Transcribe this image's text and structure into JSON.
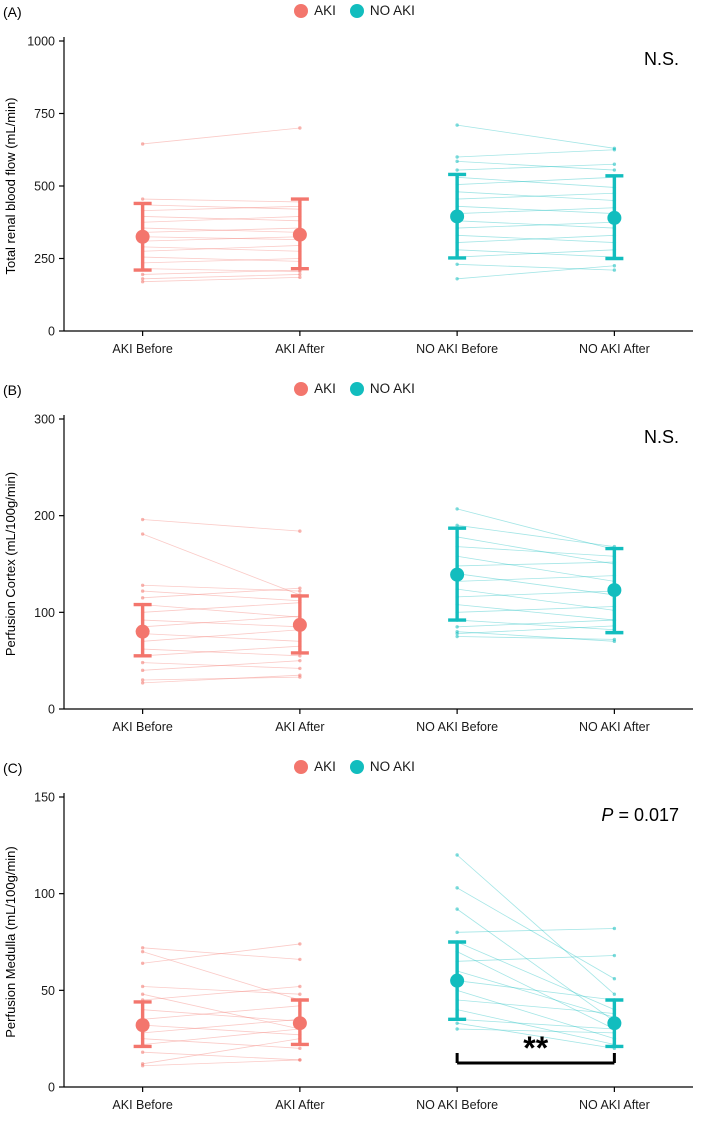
{
  "legend": {
    "aki_label": "AKI",
    "no_aki_label": "NO AKI"
  },
  "colors": {
    "aki": "#F3766D",
    "no_aki": "#12BDBE",
    "axis": "#000000",
    "text": "#1a1a1a"
  },
  "chart_data": [
    {
      "type": "scatter",
      "panel_label": "(A)",
      "annotation": "N.S.",
      "annotation_italic_prefix": "",
      "ylabel": "Total renal blood flow (mL/min)",
      "ylim": [
        0,
        1000
      ],
      "yticks": [
        0,
        250,
        500,
        750,
        1000
      ],
      "categories": [
        "AKI Before",
        "AKI After",
        "NO AKI Before",
        "NO AKI After"
      ],
      "series": [
        {
          "name": "AKI",
          "cat_indices": [
            0,
            1
          ],
          "mean": [
            325,
            332
          ],
          "ci": [
            [
              210,
              440
            ],
            [
              215,
              455
            ]
          ],
          "pairs": [
            [
              645,
              700
            ],
            [
              455,
              445
            ],
            [
              435,
              420
            ],
            [
              415,
              430
            ],
            [
              395,
              380
            ],
            [
              375,
              395
            ],
            [
              355,
              340
            ],
            [
              340,
              355
            ],
            [
              325,
              315
            ],
            [
              310,
              325
            ],
            [
              290,
              275
            ],
            [
              275,
              295
            ],
            [
              255,
              240
            ],
            [
              235,
              250
            ],
            [
              215,
              205
            ],
            [
              195,
              210
            ],
            [
              180,
              195
            ],
            [
              170,
              185
            ]
          ]
        },
        {
          "name": "NO AKI",
          "cat_indices": [
            2,
            3
          ],
          "mean": [
            395,
            390
          ],
          "ci": [
            [
              252,
              540
            ],
            [
              250,
              535
            ]
          ],
          "pairs": [
            [
              710,
              630
            ],
            [
              600,
              625
            ],
            [
              585,
              555
            ],
            [
              555,
              575
            ],
            [
              530,
              495
            ],
            [
              505,
              530
            ],
            [
              480,
              450
            ],
            [
              455,
              475
            ],
            [
              430,
              405
            ],
            [
              405,
              425
            ],
            [
              380,
              355
            ],
            [
              355,
              375
            ],
            [
              330,
              305
            ],
            [
              305,
              330
            ],
            [
              280,
              255
            ],
            [
              255,
              280
            ],
            [
              230,
              210
            ],
            [
              180,
              225
            ]
          ]
        }
      ],
      "significance": null
    },
    {
      "type": "scatter",
      "panel_label": "(B)",
      "annotation": "N.S.",
      "annotation_italic_prefix": "",
      "ylabel": "Perfusion Cortex (mL/100g/min)",
      "ylim": [
        0,
        300
      ],
      "yticks": [
        0,
        100,
        200,
        300
      ],
      "categories": [
        "AKI Before",
        "AKI After",
        "NO AKI Before",
        "NO AKI After"
      ],
      "series": [
        {
          "name": "AKI",
          "cat_indices": [
            0,
            1
          ],
          "mean": [
            80,
            87
          ],
          "ci": [
            [
              55,
              108
            ],
            [
              58,
              117
            ]
          ],
          "pairs": [
            [
              196,
              184
            ],
            [
              181,
              118
            ],
            [
              128,
              122
            ],
            [
              122,
              112
            ],
            [
              115,
              125
            ],
            [
              108,
              95
            ],
            [
              100,
              110
            ],
            [
              92,
              85
            ],
            [
              85,
              96
            ],
            [
              78,
              70
            ],
            [
              70,
              82
            ],
            [
              62,
              55
            ],
            [
              55,
              65
            ],
            [
              48,
              42
            ],
            [
              40,
              50
            ],
            [
              30,
              33
            ],
            [
              27,
              35
            ]
          ]
        },
        {
          "name": "NO AKI",
          "cat_indices": [
            2,
            3
          ],
          "mean": [
            139,
            123
          ],
          "ci": [
            [
              92,
              187
            ],
            [
              79,
              166
            ]
          ],
          "pairs": [
            [
              207,
              165
            ],
            [
              190,
              168
            ],
            [
              178,
              150
            ],
            [
              168,
              158
            ],
            [
              158,
              132
            ],
            [
              148,
              152
            ],
            [
              140,
              118
            ],
            [
              132,
              138
            ],
            [
              124,
              102
            ],
            [
              116,
              122
            ],
            [
              108,
              92
            ],
            [
              100,
              106
            ],
            [
              92,
              82
            ],
            [
              85,
              92
            ],
            [
              80,
              70
            ],
            [
              78,
              86
            ],
            [
              75,
              72
            ]
          ]
        }
      ],
      "significance": null
    },
    {
      "type": "scatter",
      "panel_label": "(C)",
      "annotation": " = 0.017",
      "annotation_italic_prefix": "P",
      "ylabel": "Perfusion Medulla (mL/100g/min)",
      "ylim": [
        0,
        150
      ],
      "yticks": [
        0,
        50,
        100,
        150
      ],
      "categories": [
        "AKI Before",
        "AKI After",
        "NO AKI Before",
        "NO AKI After"
      ],
      "series": [
        {
          "name": "AKI",
          "cat_indices": [
            0,
            1
          ],
          "mean": [
            32,
            33
          ],
          "ci": [
            [
              21,
              44
            ],
            [
              22,
              45
            ]
          ],
          "pairs": [
            [
              72,
              66
            ],
            [
              70,
              45
            ],
            [
              64,
              74
            ],
            [
              52,
              48
            ],
            [
              48,
              30
            ],
            [
              45,
              52
            ],
            [
              40,
              34
            ],
            [
              35,
              42
            ],
            [
              32,
              27
            ],
            [
              28,
              35
            ],
            [
              25,
              20
            ],
            [
              22,
              30
            ],
            [
              18,
              14
            ],
            [
              12,
              25
            ],
            [
              11,
              14
            ]
          ]
        },
        {
          "name": "NO AKI",
          "cat_indices": [
            2,
            3
          ],
          "mean": [
            55,
            33
          ],
          "ci": [
            [
              35,
              75
            ],
            [
              21,
              45
            ]
          ],
          "pairs": [
            [
              120,
              48
            ],
            [
              103,
              56
            ],
            [
              92,
              34
            ],
            [
              80,
              82
            ],
            [
              75,
              40
            ],
            [
              70,
              30
            ],
            [
              65,
              68
            ],
            [
              60,
              36
            ],
            [
              55,
              45
            ],
            [
              50,
              25
            ],
            [
              45,
              38
            ],
            [
              40,
              22
            ],
            [
              35,
              30
            ],
            [
              33,
              20
            ],
            [
              30,
              28
            ]
          ]
        }
      ],
      "significance": {
        "from": 2,
        "to": 3,
        "label": "**"
      }
    }
  ]
}
